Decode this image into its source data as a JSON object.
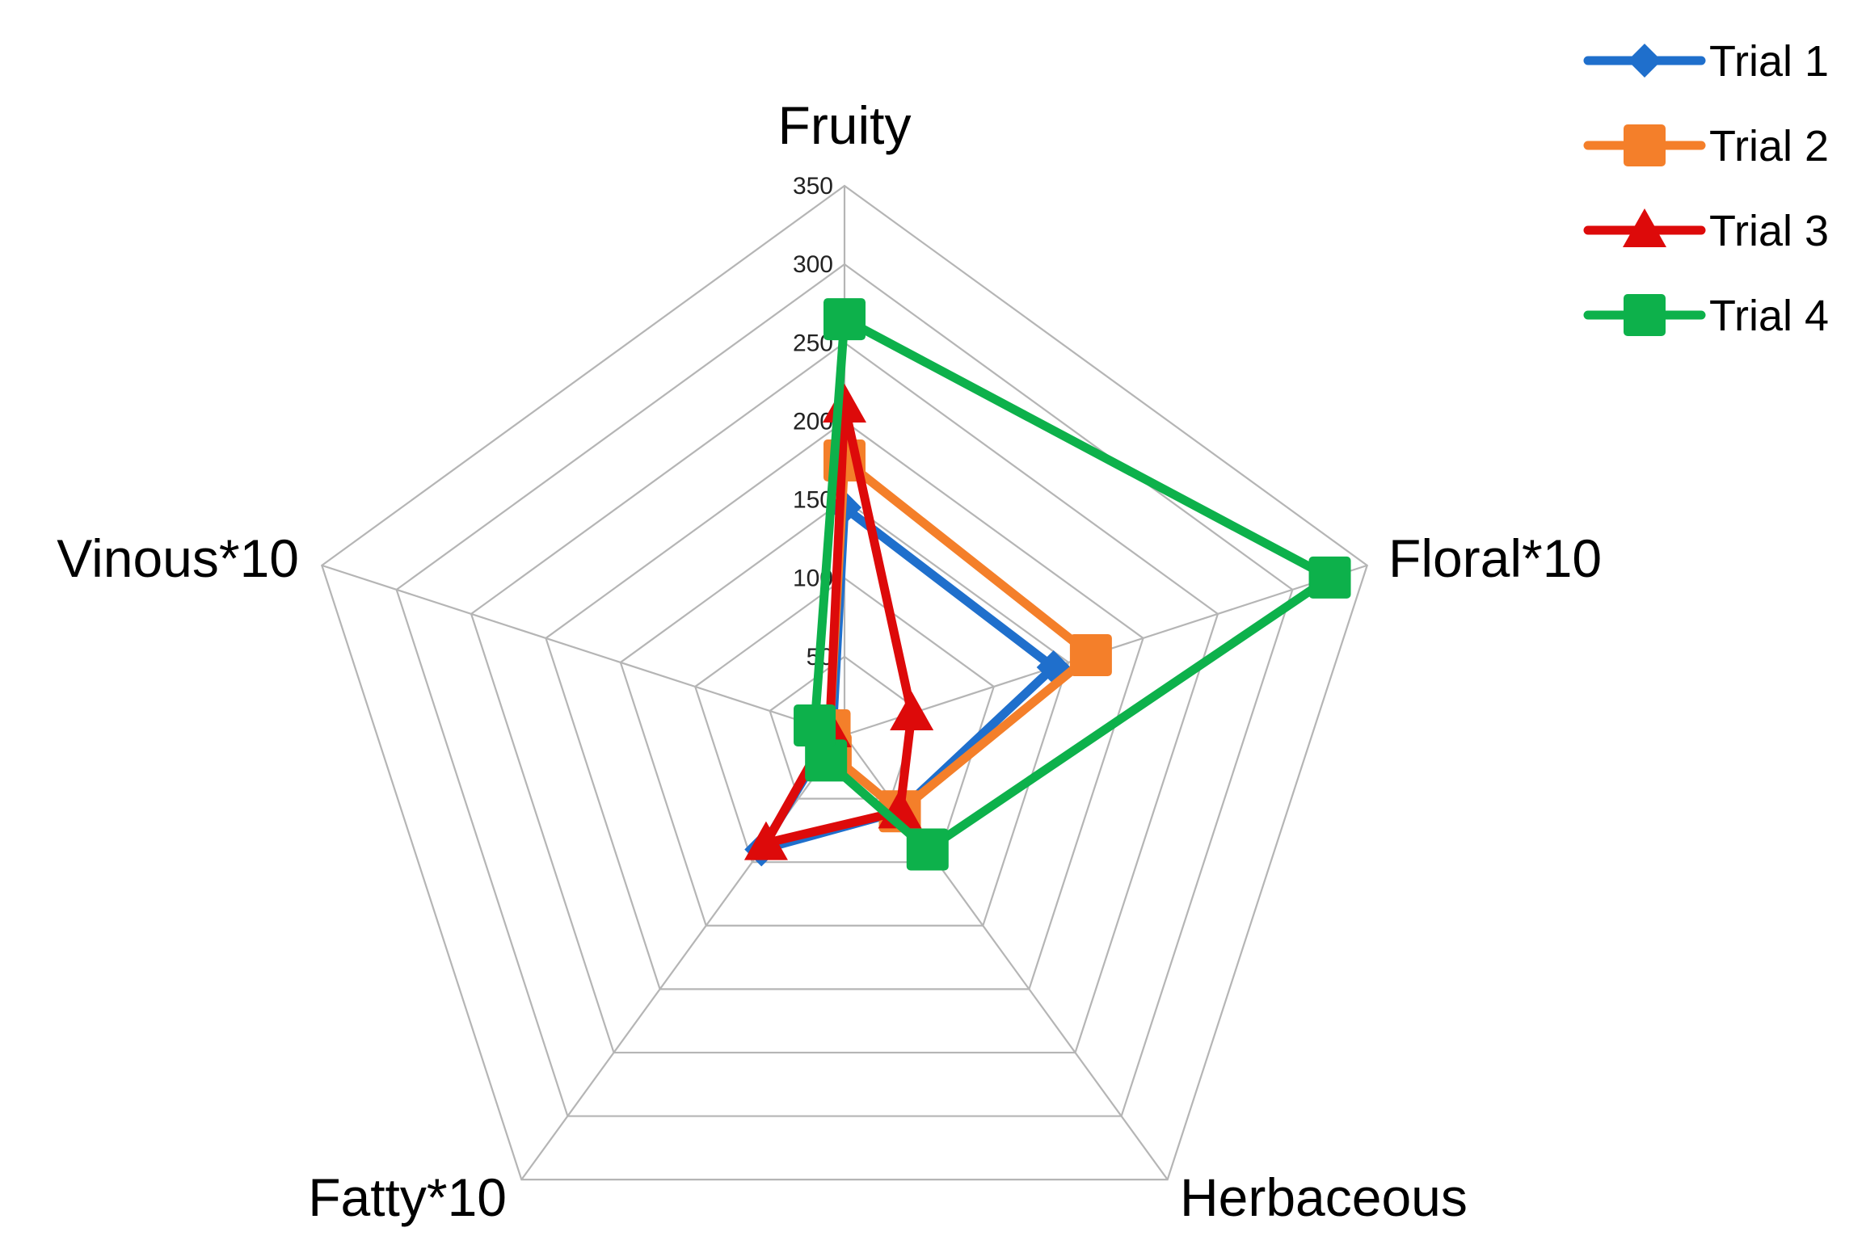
{
  "chart_data": {
    "type": "radar",
    "categories": [
      "Fruity",
      "Floral*10",
      "Herbaceous",
      "Fatty*10",
      "Vinous*10"
    ],
    "rmax": 350,
    "ticks": [
      0,
      50,
      100,
      150,
      200,
      250,
      300,
      350
    ],
    "tick_labels": [
      "0",
      "50",
      "100",
      "150",
      "200",
      "250",
      "300",
      "350"
    ],
    "legend_position": "top-right",
    "series": [
      {
        "name": "Trial 1",
        "color": "#1f6fcc",
        "marker": "diamond",
        "values": [
          145,
          140,
          60,
          90,
          8
        ]
      },
      {
        "name": "Trial 2",
        "color": "#f47f2a",
        "marker": "square",
        "values": [
          175,
          165,
          60,
          15,
          10
        ]
      },
      {
        "name": "Trial 3",
        "color": "#dd0a0a",
        "marker": "triangle",
        "values": [
          210,
          45,
          60,
          85,
          10
        ]
      },
      {
        "name": "Trial 4",
        "color": "#0db14b",
        "marker": "square",
        "values": [
          265,
          325,
          90,
          20,
          20
        ]
      }
    ]
  }
}
